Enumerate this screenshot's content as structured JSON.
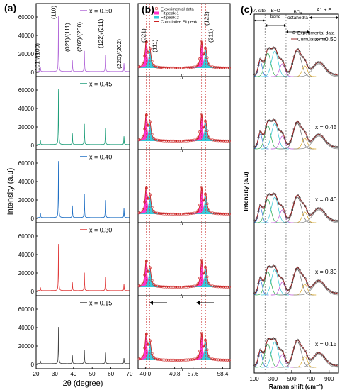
{
  "chart_data": [
    {
      "type": "line",
      "panel": "(a)",
      "xlabel": "2θ (degree)",
      "ylabel": "Intensity (a.u)",
      "xlim": [
        20,
        70
      ],
      "ylim": [
        0,
        70000
      ],
      "xticks": [
        "20",
        "30",
        "40",
        "50",
        "60",
        "70"
      ],
      "yticks": [
        "0",
        "20000",
        "40000",
        "60000"
      ],
      "series": [
        {
          "name": "x = 0.50",
          "color": "#b36ad9",
          "x": [
            22.3,
            32.0,
            39.4,
            45.8,
            57.1,
            67.0
          ],
          "y": [
            4500,
            62000,
            12000,
            23000,
            18000,
            9000
          ]
        },
        {
          "name": "x = 0.45",
          "color": "#1f9e7a",
          "x": [
            22.3,
            32.0,
            39.4,
            45.8,
            57.1,
            67.0
          ],
          "y": [
            4500,
            62000,
            12000,
            23000,
            18000,
            9000
          ]
        },
        {
          "name": "x = 0.40",
          "color": "#1f6fc4",
          "x": [
            22.3,
            32.0,
            39.4,
            45.8,
            57.1,
            67.0
          ],
          "y": [
            5000,
            63000,
            13000,
            26000,
            19000,
            10000
          ]
        },
        {
          "name": "x = 0.30",
          "color": "#e03a3a",
          "x": [
            22.3,
            32.0,
            39.4,
            45.8,
            57.1,
            67.0
          ],
          "y": [
            3500,
            52000,
            9000,
            20000,
            15000,
            7000
          ]
        },
        {
          "name": "x = 0.15",
          "color": "#444444",
          "x": [
            22.3,
            32.0,
            39.4,
            45.8,
            57.1,
            67.0
          ],
          "y": [
            3000,
            41000,
            9000,
            15000,
            12000,
            6000
          ]
        }
      ],
      "peak_labels": [
        "(101)/(100)",
        "(110)",
        "(021)/(111)",
        "(202)/(200)",
        "(122)/(211)",
        "(220)/(202)"
      ]
    },
    {
      "type": "line",
      "panel": "(b)",
      "xlabel": "",
      "xticks": [
        "40.0",
        "40.8",
        "57.6",
        "58.4"
      ],
      "legend": [
        "Experimental data",
        "Fit peak-1",
        "Fit peak-2",
        "Cumulative Fit peak"
      ],
      "peak_labels": [
        "(021)",
        "(111)",
        "(122)",
        "(211)"
      ],
      "series": [
        {
          "name": "Fit peak-1",
          "color": "#ff33cc"
        },
        {
          "name": "Fit peak-2",
          "color": "#33ccdd"
        },
        {
          "name": "Cumulative Fit peak",
          "color": "#cc2222"
        }
      ]
    },
    {
      "type": "line",
      "panel": "(c)",
      "xlabel": "Raman shift (cm⁻¹)",
      "ylabel": "Intensity (a.u)",
      "xlim": [
        100,
        1000
      ],
      "xticks": [
        "100",
        "300",
        "500",
        "700",
        "900"
      ],
      "legend": [
        "Experimental data",
        "Cumulative fit"
      ],
      "regions": [
        "A-site",
        "B−O bond",
        "BO₆ octahedra",
        "A1 + E"
      ],
      "samples": [
        "x = 0.50",
        "x = 0.45",
        "x = 0.40",
        "x = 0.30",
        "x = 0.15"
      ]
    }
  ],
  "labels": {
    "panel_a": "(a)",
    "panel_b": "(b)",
    "panel_c": "(c)",
    "xlabel_a": "2θ (degree)",
    "ylabel_a": "Intensity (a.u)",
    "xlabel_c": "Raman shift (cm⁻¹)",
    "ylabel_c": "Intensity (a.u)",
    "legend_b_exp": "Experimental data",
    "legend_b_p1": "Fit peak-1",
    "legend_b_p2": "Fit peak-2",
    "legend_b_cum": "Cumulative Fit peak",
    "legend_c_exp": "Experimental data",
    "legend_c_cum": "Cumulative fit",
    "region_asite": "A-site",
    "region_bo_1": "B−O",
    "region_bo_2": "bond",
    "region_bo6_1": "BO₆",
    "region_bo6_2": "octahedra",
    "region_a1e": "A1 + E"
  },
  "colors": {
    "fit1": "#ff33cc",
    "fit2": "#33ccdd",
    "cumulative": "#cc2222",
    "raman_fit": "#9b2a2a"
  }
}
